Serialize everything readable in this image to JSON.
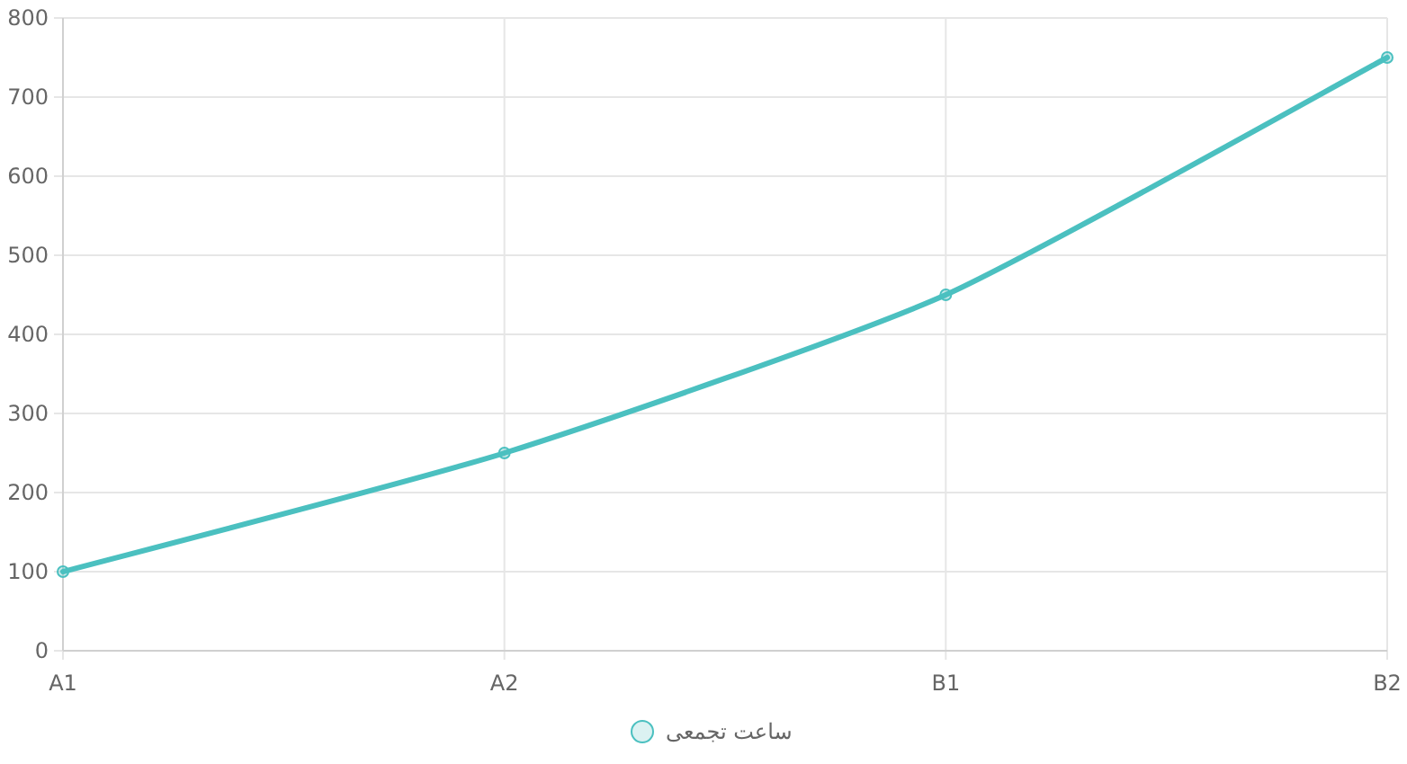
{
  "chart_data": {
    "type": "line",
    "categories": [
      "A1",
      "A2",
      "B1",
      "B2"
    ],
    "series": [
      {
        "name": "ساعت تجمعی",
        "color": "#4bc0c0",
        "values": [
          100,
          250,
          450,
          750
        ]
      }
    ],
    "ylim": [
      0,
      800
    ],
    "yticks": [
      0,
      100,
      200,
      300,
      400,
      500,
      600,
      700,
      800
    ],
    "grid": true,
    "legend": "bottom",
    "marker": "circle",
    "line_style": "solid"
  }
}
